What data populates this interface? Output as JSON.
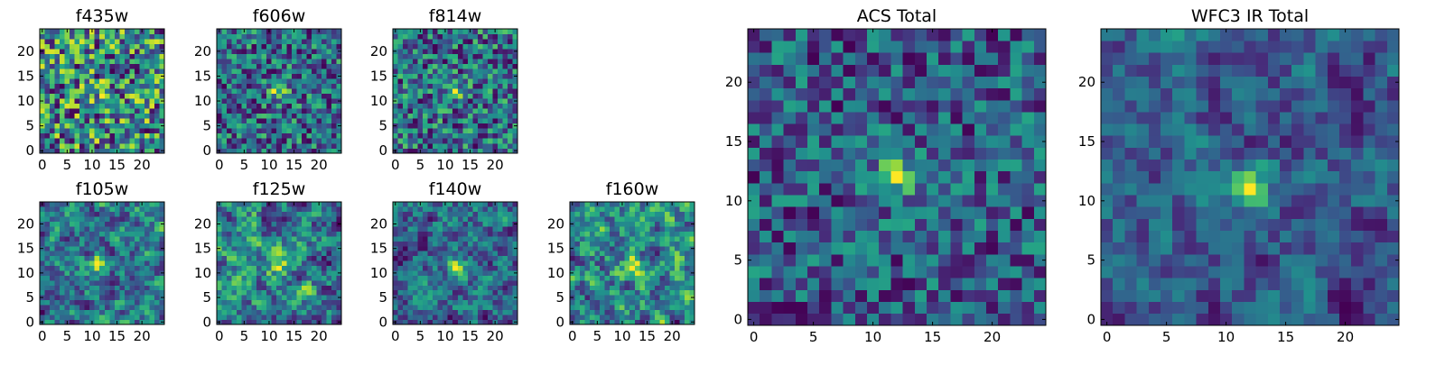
{
  "chart_data": [
    {
      "type": "heatmap",
      "title": "f435w",
      "xlim": [
        0,
        24
      ],
      "ylim": [
        0,
        24
      ],
      "xticks": [
        0,
        5,
        10,
        15,
        20
      ],
      "yticks": [
        0,
        5,
        10,
        15,
        20
      ],
      "seed": 11,
      "smooth": 0,
      "peak": [
        12,
        12,
        0.15
      ]
    },
    {
      "type": "heatmap",
      "title": "f606w",
      "xlim": [
        0,
        24
      ],
      "ylim": [
        0,
        24
      ],
      "xticks": [
        0,
        5,
        10,
        15,
        20
      ],
      "yticks": [
        0,
        5,
        10,
        15,
        20
      ],
      "seed": 23,
      "smooth": 0,
      "peak": [
        12,
        12,
        0.6
      ]
    },
    {
      "type": "heatmap",
      "title": "f814w",
      "xlim": [
        0,
        24
      ],
      "ylim": [
        0,
        24
      ],
      "xticks": [
        0,
        5,
        10,
        15,
        20
      ],
      "yticks": [
        0,
        5,
        10,
        15,
        20
      ],
      "seed": 37,
      "smooth": 0,
      "peak": [
        12,
        12,
        0.4
      ]
    },
    {
      "type": "heatmap",
      "title": "f105w",
      "xlim": [
        0,
        24
      ],
      "ylim": [
        0,
        24
      ],
      "xticks": [
        0,
        5,
        10,
        15,
        20
      ],
      "yticks": [
        0,
        5,
        10,
        15,
        20
      ],
      "seed": 41,
      "smooth": 1,
      "peak": [
        11,
        12,
        0.35
      ]
    },
    {
      "type": "heatmap",
      "title": "f125w",
      "xlim": [
        0,
        24
      ],
      "ylim": [
        0,
        24
      ],
      "xticks": [
        0,
        5,
        10,
        15,
        20
      ],
      "yticks": [
        0,
        5,
        10,
        15,
        20
      ],
      "seed": 53,
      "smooth": 1,
      "peak": [
        12,
        12,
        0.35
      ]
    },
    {
      "type": "heatmap",
      "title": "f140w",
      "xlim": [
        0,
        24
      ],
      "ylim": [
        0,
        24
      ],
      "xticks": [
        0,
        5,
        10,
        15,
        20
      ],
      "yticks": [
        0,
        5,
        10,
        15,
        20
      ],
      "seed": 67,
      "smooth": 1,
      "peak": [
        12,
        11,
        0.35
      ]
    },
    {
      "type": "heatmap",
      "title": "f160w",
      "xlim": [
        0,
        24
      ],
      "ylim": [
        0,
        24
      ],
      "xticks": [
        0,
        5,
        10,
        15,
        20
      ],
      "yticks": [
        0,
        5,
        10,
        15,
        20
      ],
      "seed": 79,
      "smooth": 1,
      "peak": [
        12,
        11,
        0.4
      ]
    },
    {
      "type": "heatmap",
      "title": "ACS Total",
      "xlim": [
        0,
        24
      ],
      "ylim": [
        0,
        24
      ],
      "xticks": [
        0,
        5,
        10,
        15,
        20
      ],
      "yticks": [
        0,
        5,
        10,
        15,
        20
      ],
      "seed": 97,
      "smooth": 0,
      "peak": [
        12,
        12,
        0.8
      ]
    },
    {
      "type": "heatmap",
      "title": "WFC3 IR Total",
      "xlim": [
        0,
        24
      ],
      "ylim": [
        0,
        24
      ],
      "xticks": [
        0,
        5,
        10,
        15,
        20
      ],
      "yticks": [
        0,
        5,
        10,
        15,
        20
      ],
      "seed": 131,
      "smooth": 1,
      "peak": [
        12,
        11,
        0.7
      ]
    }
  ],
  "colormap": [
    "#440154",
    "#472c7a",
    "#3b518b",
    "#2c718e",
    "#21908d",
    "#27ad81",
    "#5cc863",
    "#aadc32",
    "#fde725"
  ]
}
